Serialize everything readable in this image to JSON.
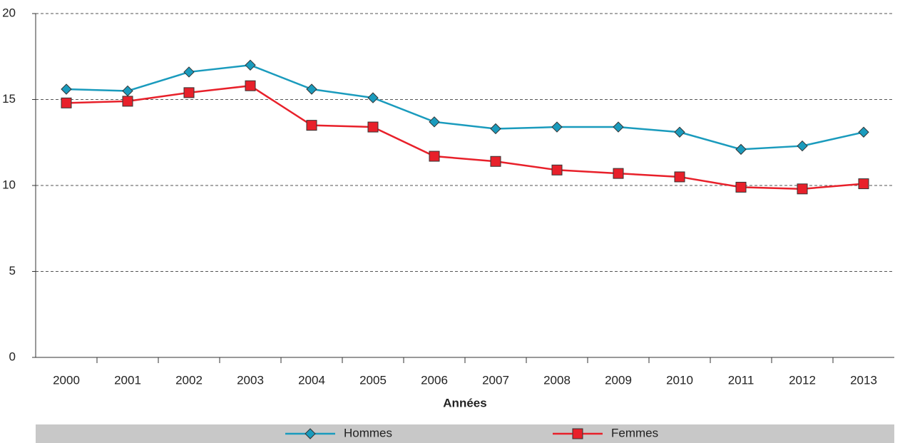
{
  "chart_data": {
    "type": "line",
    "x_label": "Années",
    "categories": [
      "2000",
      "2001",
      "2002",
      "2003",
      "2004",
      "2005",
      "2006",
      "2007",
      "2008",
      "2009",
      "2010",
      "2011",
      "2012",
      "2013"
    ],
    "series": [
      {
        "name": "Hommes",
        "color": "#1a9bbd",
        "marker": "diamond",
        "values": [
          15.6,
          15.5,
          16.6,
          17.0,
          15.6,
          15.1,
          13.7,
          13.3,
          13.4,
          13.4,
          13.1,
          12.1,
          12.3,
          13.1
        ]
      },
      {
        "name": "Femmes",
        "color": "#e8202a",
        "marker": "square",
        "values": [
          14.8,
          14.9,
          15.4,
          15.8,
          13.5,
          13.4,
          11.7,
          11.4,
          10.9,
          10.7,
          10.5,
          9.9,
          9.8,
          10.1
        ]
      }
    ],
    "ylim": [
      0,
      20
    ],
    "yticks": [
      0,
      5,
      10,
      15,
      20
    ],
    "grid": true,
    "legend": "bottom"
  }
}
